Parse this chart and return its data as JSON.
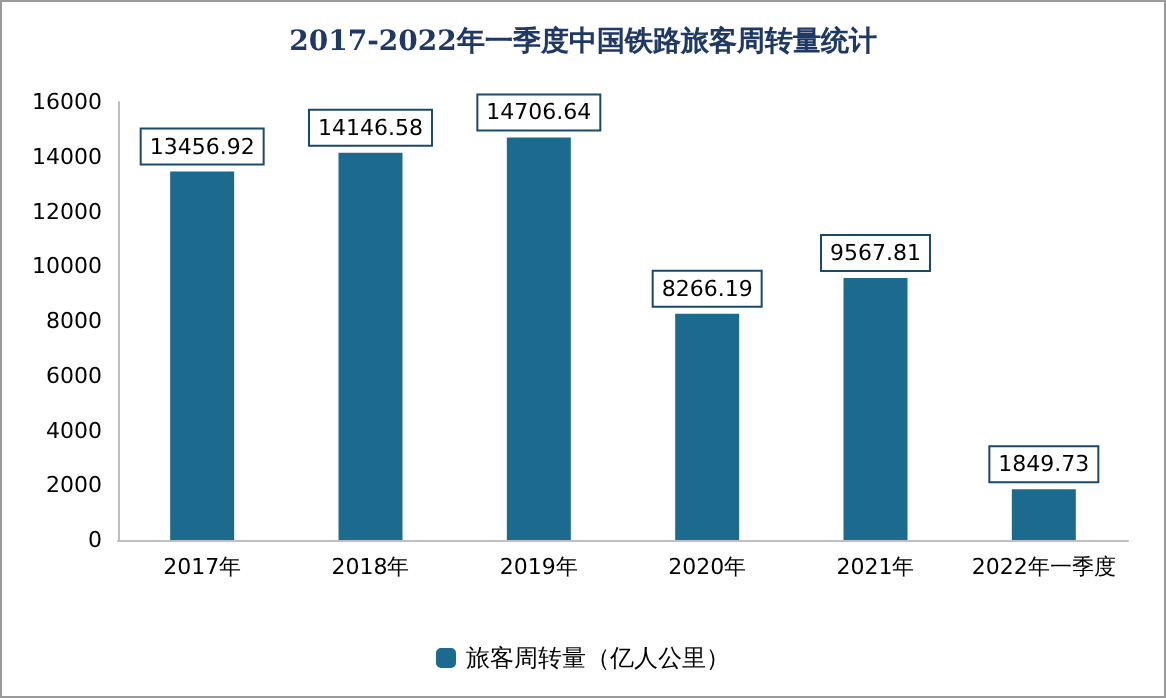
{
  "chart_data": {
    "type": "bar",
    "title": "2017-2022年一季度中国铁路旅客周转量统计",
    "categories": [
      "2017年",
      "2018年",
      "2019年",
      "2020年",
      "2021年",
      "2022年一季度"
    ],
    "series": [
      {
        "name": "旅客周转量（亿人公里）",
        "color": "#1c6a8e",
        "values": [
          13456.92,
          14146.58,
          14706.64,
          8266.19,
          9567.81,
          1849.73
        ]
      }
    ],
    "ylim": [
      0,
      16000
    ],
    "yticks": [
      0,
      2000,
      4000,
      6000,
      8000,
      10000,
      12000,
      14000,
      16000
    ],
    "data_labels": true,
    "grid": false,
    "legend": "bottom"
  }
}
